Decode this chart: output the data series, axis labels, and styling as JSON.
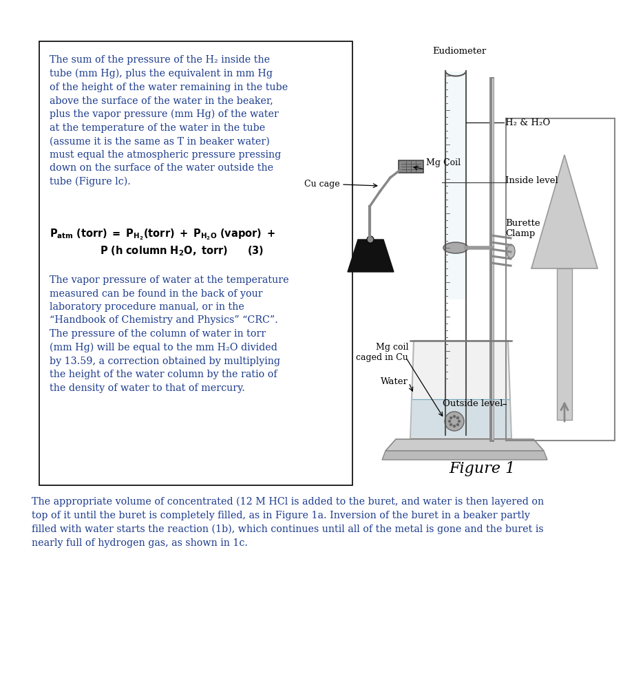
{
  "bg_color": "#ffffff",
  "blue": "#1a3a8c",
  "black": "#000000",
  "gray": "#888888",
  "lgray": "#aaaaaa",
  "para1": "The sum of the pressure of the H₂ inside the\ntube (mm Hg), plus the equivalent in mm Hg\nof the height of the water remaining in the tube\nabove the surface of the water in the beaker,\nplus the vapor pressure (mm Hg) of the water\nat the temperature of the water in the tube\n(assume it is the same as T in beaker water)\nmust equal the atmospheric pressure pressing\ndown on the surface of the water outside the\ntube (Figure lc).",
  "para2": "The vapor pressure of water at the temperature\nmeasured can be found in the back of your\nlaboratory procedure manual, or in the\n“Handbook of Chemistry and Physics” “CRC”.\nThe pressure of the column of water in torr\n(mm Hg) will be equal to the mm H₂O divided\nby 13.59, a correction obtained by multiplying\nthe height of the water column by the ratio of\nthe density of water to that of mercury.",
  "bottom_para": "The appropriate volume of concentrated (12 M HCl is added to the buret, and water is then layered on\ntop of it until the buret is completely filled, as in Figure 1a. Inversion of the buret in a beaker partly\nfilled with water starts the reaction (1b), which continues until all of the metal is gone and the buret is\nnearly full of hydrogen gas, as shown in 1c.",
  "eudiometer": "Eudiometer",
  "h2h2o": "H₂ & H₂O",
  "inside_level": "Inside level",
  "burette_clamp": "Burette\nClamp",
  "mg_coil": "Mg Coil",
  "cu_cage": "Cu cage",
  "mg_coil_cu": "Mg coil\ncaged in Cu",
  "water_label": "Water",
  "outside_level": "Outside level",
  "figure1": "Figure 1"
}
